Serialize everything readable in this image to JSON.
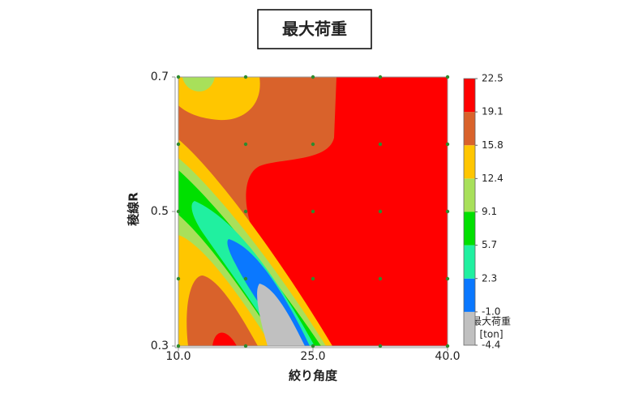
{
  "chart_data": {
    "type": "contour",
    "title": "最大荷重",
    "xlabel": "絞り角度",
    "ylabel": "稜線R",
    "colorbar_title": "最大荷重",
    "colorbar_unit": "[ton]",
    "xlim": [
      10,
      40
    ],
    "ylim": [
      0.3,
      0.7
    ],
    "xticks": [
      {
        "value": 10,
        "label": "10.0"
      },
      {
        "value": 25,
        "label": "25.0"
      },
      {
        "value": 40,
        "label": "40.0"
      }
    ],
    "yticks": [
      0.3,
      0.5,
      0.7
    ],
    "levels": [
      -4.4,
      -1.0,
      2.3,
      5.7,
      9.1,
      12.4,
      15.8,
      19.1,
      22.5
    ],
    "level_labels": [
      "-4.4",
      "-1.0",
      "2.3",
      "5.7",
      "9.1",
      "12.4",
      "15.8",
      "19.1",
      "22.5"
    ],
    "level_colors": [
      "#c0c0c0",
      "#0a78ff",
      "#20f0a0",
      "#00e000",
      "#a8e05a",
      "#ffc600",
      "#d9622b",
      "#ff0000"
    ],
    "points": {
      "x": [
        10,
        17.5,
        25,
        32.5,
        40,
        10,
        17.5,
        25,
        32.5,
        40,
        10,
        17.5,
        25,
        32.5,
        40,
        10,
        17.5,
        25,
        32.5,
        40,
        10,
        17.5,
        25,
        32.5,
        40
      ],
      "y": [
        0.7,
        0.7,
        0.7,
        0.7,
        0.7,
        0.6,
        0.6,
        0.6,
        0.6,
        0.6,
        0.5,
        0.5,
        0.5,
        0.5,
        0.5,
        0.4,
        0.4,
        0.4,
        0.4,
        0.4,
        0.3,
        0.3,
        0.3,
        0.3,
        0.3
      ],
      "color": "#2e8b2e"
    }
  }
}
